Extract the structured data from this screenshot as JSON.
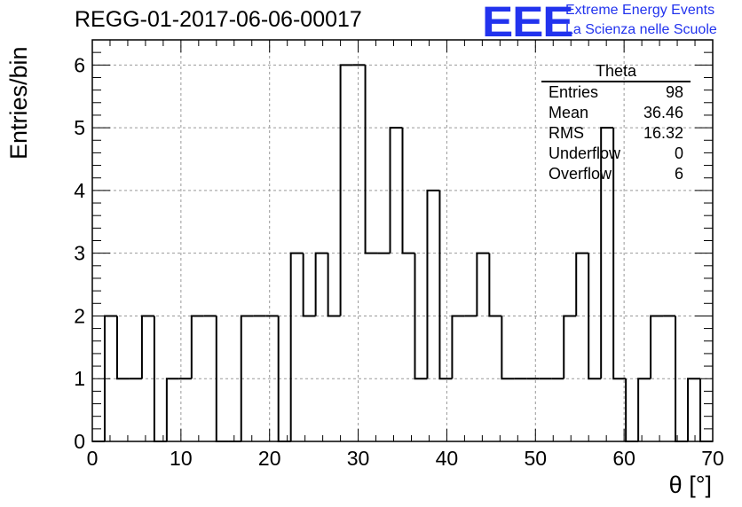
{
  "header": {
    "run_title": "REGG-01-2017-06-06-00017",
    "logo_text": "EEE",
    "logo_line1": "Extreme Energy Events",
    "logo_line2": "La Scienza nelle Scuole",
    "logo_color": "#2233ee"
  },
  "stats_box": {
    "title": "Theta",
    "rows": [
      {
        "label": "Entries",
        "value": "98"
      },
      {
        "label": "Mean",
        "value": "36.46"
      },
      {
        "label": "RMS",
        "value": "16.32"
      },
      {
        "label": "Underflow",
        "value": "0"
      },
      {
        "label": "Overflow",
        "value": "6"
      }
    ]
  },
  "chart_data": {
    "type": "bar",
    "style": "step-histogram",
    "title": "REGG-01-2017-06-06-00017",
    "xlabel": "θ [°]",
    "ylabel": "Entries/bin",
    "xlim": [
      0,
      70
    ],
    "ylim": [
      0,
      6.4
    ],
    "grid": true,
    "bin_width": 1.4,
    "x_bin_edges_start": 0,
    "values": [
      0,
      2,
      1,
      1,
      2,
      0,
      1,
      1,
      2,
      2,
      0,
      0,
      2,
      2,
      2,
      0,
      3,
      2,
      3,
      2,
      6,
      6,
      3,
      3,
      5,
      3,
      1,
      4,
      1,
      2,
      2,
      3,
      2,
      1,
      1,
      1,
      1,
      1,
      2,
      3,
      1,
      5,
      1,
      0,
      1,
      2,
      2,
      0,
      1,
      0
    ],
    "x_ticks": [
      0,
      10,
      20,
      30,
      40,
      50,
      60,
      70
    ],
    "y_ticks": [
      0,
      1,
      2,
      3,
      4,
      5,
      6
    ]
  }
}
